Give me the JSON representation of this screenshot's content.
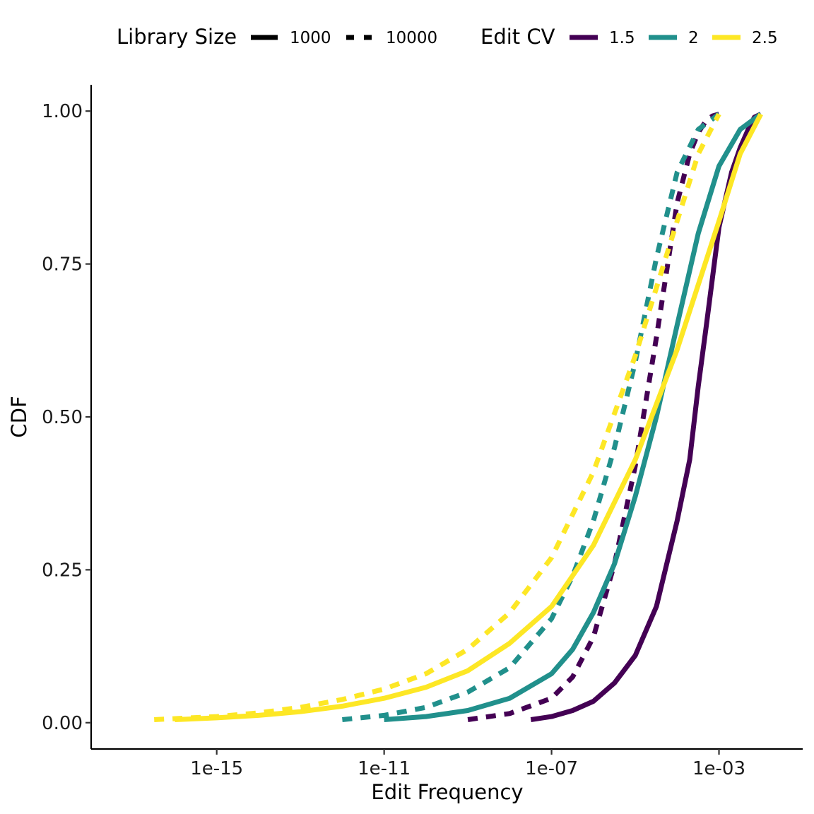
{
  "chart_data": {
    "type": "line",
    "title": "",
    "xlabel": "Edit Frequency",
    "ylabel": "CDF",
    "x_scale": "log10",
    "xlim": [
      1e-18,
      0.1
    ],
    "ylim": [
      0,
      1
    ],
    "x_ticks": [
      {
        "value": 1e-15,
        "label": "1e-15"
      },
      {
        "value": 1e-11,
        "label": "1e-11"
      },
      {
        "value": 1e-07,
        "label": "1e-07"
      },
      {
        "value": 0.001,
        "label": "1e-03"
      }
    ],
    "y_ticks": [
      {
        "value": 0.0,
        "label": "0.00"
      },
      {
        "value": 0.25,
        "label": "0.25"
      },
      {
        "value": 0.5,
        "label": "0.50"
      },
      {
        "value": 0.75,
        "label": "0.75"
      },
      {
        "value": 1.0,
        "label": "1.00"
      }
    ],
    "grid": false,
    "legend_position": "top",
    "legend": {
      "linetype": {
        "title": "Library Size",
        "items": [
          {
            "label": "1000",
            "dash": "solid"
          },
          {
            "label": "10000",
            "dash": "dashed"
          }
        ]
      },
      "color": {
        "title": "Edit CV",
        "items": [
          {
            "label": "1.5",
            "color": "#440154"
          },
          {
            "label": "2",
            "color": "#21908C"
          },
          {
            "label": "2.5",
            "color": "#FDE725"
          }
        ]
      }
    },
    "series": [
      {
        "edit_cv": "1.5",
        "library_size": "1000",
        "color": "#440154",
        "dash": "solid",
        "x": [
          "3.2e-8",
          "1e-7",
          "3.2e-7",
          "1e-6",
          "3.2e-6",
          "1e-5",
          "3.2e-5",
          "1e-4",
          "2e-4",
          "3.2e-4",
          "5e-4",
          "1e-3",
          "2e-3",
          "3.2e-3",
          "5e-3",
          "7e-3",
          "1e-2"
        ],
        "y": [
          0.005,
          0.01,
          0.02,
          0.035,
          0.065,
          0.11,
          0.19,
          0.33,
          0.43,
          0.55,
          0.65,
          0.81,
          0.9,
          0.94,
          0.97,
          0.99,
          0.995
        ]
      },
      {
        "edit_cv": "1.5",
        "library_size": "10000",
        "color": "#440154",
        "dash": "dashed",
        "x": [
          "1e-9",
          "1e-8",
          "1e-7",
          "3.2e-7",
          "1e-6",
          "3.2e-6",
          "1e-5",
          "3.2e-5",
          "1e-4",
          "2e-4",
          "3.2e-4",
          "5e-4",
          "7e-4",
          "1e-3"
        ],
        "y": [
          0.005,
          0.015,
          0.04,
          0.075,
          0.14,
          0.26,
          0.42,
          0.63,
          0.85,
          0.93,
          0.965,
          0.985,
          0.992,
          0.995
        ]
      },
      {
        "edit_cv": "2",
        "library_size": "1000",
        "color": "#21908C",
        "dash": "solid",
        "x": [
          "1e-11",
          "1e-10",
          "1e-9",
          "1e-8",
          "1e-7",
          "3.2e-7",
          "1e-6",
          "3.2e-6",
          "1e-5",
          "3.2e-5",
          "1e-4",
          "3.2e-4",
          "1e-3",
          "3.2e-3",
          "1e-2"
        ],
        "y": [
          0.005,
          0.01,
          0.02,
          0.04,
          0.08,
          0.12,
          0.18,
          0.26,
          0.37,
          0.5,
          0.65,
          0.8,
          0.91,
          0.97,
          0.995
        ]
      },
      {
        "edit_cv": "2",
        "library_size": "10000",
        "color": "#21908C",
        "dash": "dashed",
        "x": [
          "1e-12",
          "1e-11",
          "1e-10",
          "1e-9",
          "1e-8",
          "1e-7",
          "3.2e-7",
          "1e-6",
          "3.2e-6",
          "1e-5",
          "3.2e-5",
          "1e-4",
          "3.2e-4",
          "1e-3"
        ],
        "y": [
          0.005,
          0.012,
          0.025,
          0.05,
          0.09,
          0.17,
          0.24,
          0.33,
          0.45,
          0.59,
          0.76,
          0.9,
          0.97,
          0.995
        ]
      },
      {
        "edit_cv": "2.5",
        "library_size": "1000",
        "color": "#FDE725",
        "dash": "solid",
        "x": [
          "1e-16",
          "1e-15",
          "1e-14",
          "1e-13",
          "1e-12",
          "1e-11",
          "1e-10",
          "1e-9",
          "1e-8",
          "1e-7",
          "1e-6",
          "1e-5",
          "1e-4",
          "1e-3",
          "3.2e-3",
          "1e-2"
        ],
        "y": [
          0.005,
          0.008,
          0.012,
          0.018,
          0.027,
          0.04,
          0.058,
          0.085,
          0.13,
          0.19,
          0.29,
          0.43,
          0.61,
          0.82,
          0.93,
          0.995
        ]
      },
      {
        "edit_cv": "2.5",
        "library_size": "10000",
        "color": "#FDE725",
        "dash": "dashed",
        "x": [
          "3.2e-17",
          "1e-15",
          "1e-14",
          "1e-13",
          "1e-12",
          "1e-11",
          "1e-10",
          "1e-9",
          "1e-8",
          "1e-7",
          "1e-6",
          "1e-5",
          "1e-4",
          "3.2e-4",
          "1e-3"
        ],
        "y": [
          0.005,
          0.01,
          0.016,
          0.025,
          0.038,
          0.055,
          0.08,
          0.12,
          0.18,
          0.27,
          0.41,
          0.6,
          0.82,
          0.93,
          0.995
        ]
      }
    ]
  }
}
